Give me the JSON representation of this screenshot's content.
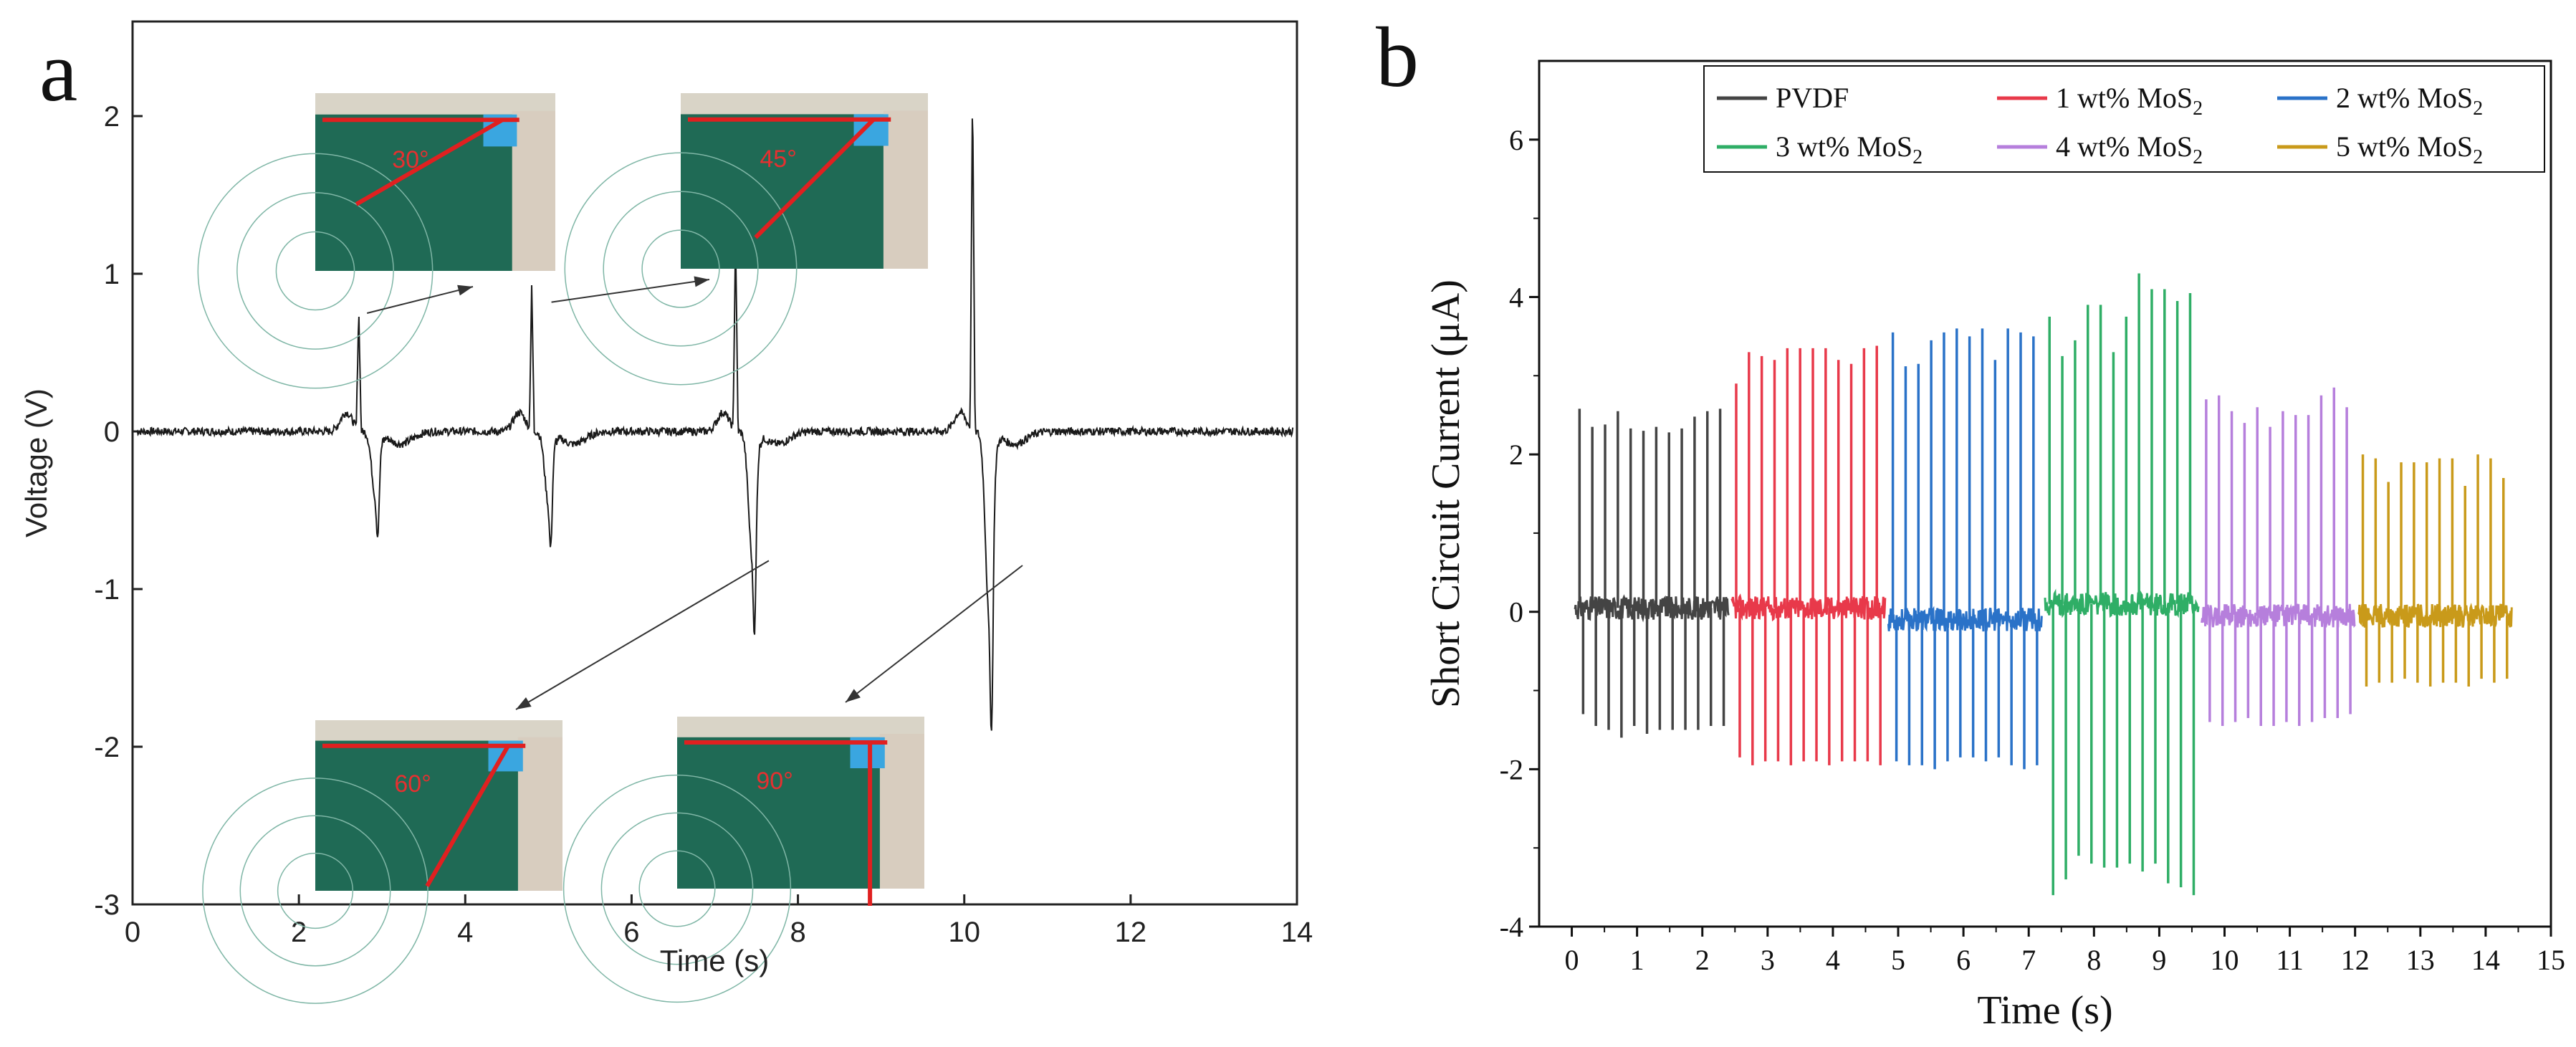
{
  "chart_data": [
    {
      "type": "line",
      "panel_label": "a",
      "xlabel": "Time (s)",
      "ylabel": "Voltage (V)",
      "xlim": [
        0,
        14
      ],
      "ylim": [
        -3,
        2.6
      ],
      "xticks": [
        "0",
        "2",
        "4",
        "6",
        "8",
        "10",
        "12",
        "14"
      ],
      "yticks": [
        "-3",
        "-2",
        "-1",
        "0",
        "1",
        "2"
      ],
      "series": [
        {
          "color": "#1a1a1a",
          "pulses": [
            {
              "t": 2.72,
              "peak": 0.77,
              "trough": -0.74
            },
            {
              "t": 4.8,
              "peak": 0.92,
              "trough": -0.82
            },
            {
              "t": 7.25,
              "peak": 1.24,
              "trough": -1.42
            },
            {
              "t": 10.1,
              "peak": 2.2,
              "trough": -2.12
            }
          ]
        }
      ],
      "insets": [
        {
          "angle_label": "30°",
          "points_to": {
            "x": 2.75,
            "y": 0.75
          }
        },
        {
          "angle_label": "45°",
          "points_to": {
            "x": 4.95,
            "y": 0.82
          }
        },
        {
          "angle_label": "60°",
          "points_to": {
            "x": 7.7,
            "y": -0.8
          }
        },
        {
          "angle_label": "90°",
          "points_to": {
            "x": 10.7,
            "y": -0.85
          }
        }
      ]
    },
    {
      "type": "line",
      "panel_label": "b",
      "xlabel": "Time (s)",
      "ylabel": "Short Circuit Current (μA)",
      "xlim": [
        -0.5,
        15
      ],
      "ylim": [
        -4,
        7
      ],
      "xticks": [
        "0",
        "1",
        "2",
        "3",
        "4",
        "5",
        "6",
        "7",
        "8",
        "9",
        "10",
        "11",
        "12",
        "13",
        "14",
        "15"
      ],
      "yticks": [
        "-4",
        "-2",
        "0",
        "2",
        "4",
        "6"
      ],
      "legend_position": "top",
      "series": [
        {
          "name": "PVDF",
          "sub": "",
          "color": "#444444",
          "t_start": 0.05,
          "t_end": 2.4,
          "base": 0.05,
          "peaks": [
            2.58,
            2.35,
            2.38,
            2.55,
            2.33,
            2.3,
            2.35,
            2.28,
            2.33,
            2.48,
            2.55,
            2.58
          ],
          "troughs": [
            -1.3,
            -1.45,
            -1.5,
            -1.6,
            -1.45,
            -1.55,
            -1.5,
            -1.5,
            -1.5,
            -1.5,
            -1.45,
            -1.45
          ]
        },
        {
          "name": "1 wt% MoS",
          "sub": "2",
          "color": "#e8394a",
          "t_start": 2.45,
          "t_end": 4.8,
          "base": 0.05,
          "peaks": [
            2.9,
            3.3,
            3.25,
            3.2,
            3.35,
            3.35,
            3.35,
            3.35,
            3.2,
            3.15,
            3.35,
            3.38
          ],
          "troughs": [
            -1.85,
            -1.95,
            -1.9,
            -1.9,
            -1.95,
            -1.9,
            -1.9,
            -1.95,
            -1.9,
            -1.9,
            -1.9,
            -1.95
          ]
        },
        {
          "name": "2 wt% MoS",
          "sub": "2",
          "color": "#2a72c8",
          "t_start": 4.85,
          "t_end": 7.2,
          "base": -0.1,
          "peaks": [
            3.55,
            3.12,
            3.15,
            3.45,
            3.55,
            3.6,
            3.5,
            3.6,
            3.2,
            3.6,
            3.55,
            3.5
          ],
          "troughs": [
            -1.9,
            -1.95,
            -1.95,
            -2.0,
            -1.9,
            -1.85,
            -1.85,
            -1.9,
            -1.85,
            -1.95,
            -2.0,
            -1.95
          ]
        },
        {
          "name": "3 wt% MoS",
          "sub": "2",
          "color": "#2fae66",
          "t_start": 7.25,
          "t_end": 9.6,
          "base": 0.1,
          "peaks": [
            3.75,
            3.25,
            3.45,
            3.9,
            3.9,
            3.3,
            3.75,
            4.3,
            4.1,
            4.1,
            3.95,
            4.05
          ],
          "troughs": [
            -3.6,
            -3.4,
            -3.1,
            -3.2,
            -3.25,
            -3.25,
            -3.2,
            -3.3,
            -3.2,
            -3.45,
            -3.5,
            -3.6
          ]
        },
        {
          "name": "4 wt% MoS",
          "sub": "2",
          "color": "#b67fdc",
          "t_start": 9.65,
          "t_end": 12.0,
          "base": -0.05,
          "peaks": [
            2.7,
            2.75,
            2.55,
            2.4,
            2.6,
            2.35,
            2.55,
            2.5,
            2.5,
            2.75,
            2.85,
            2.6
          ],
          "troughs": [
            -1.4,
            -1.45,
            -1.4,
            -1.35,
            -1.45,
            -1.45,
            -1.4,
            -1.45,
            -1.4,
            -1.35,
            -1.35,
            -1.3
          ]
        },
        {
          "name": "5 wt% MoS",
          "sub": "2",
          "color": "#c99a1a",
          "t_start": 12.05,
          "t_end": 14.4,
          "base": -0.05,
          "peaks": [
            2.0,
            1.95,
            1.65,
            1.9,
            1.9,
            1.9,
            1.95,
            1.95,
            1.6,
            2.0,
            1.95,
            1.7
          ],
          "troughs": [
            -0.95,
            -0.9,
            -0.9,
            -0.85,
            -0.9,
            -0.95,
            -0.9,
            -0.9,
            -0.95,
            -0.85,
            -0.9,
            -0.85
          ]
        }
      ]
    }
  ]
}
